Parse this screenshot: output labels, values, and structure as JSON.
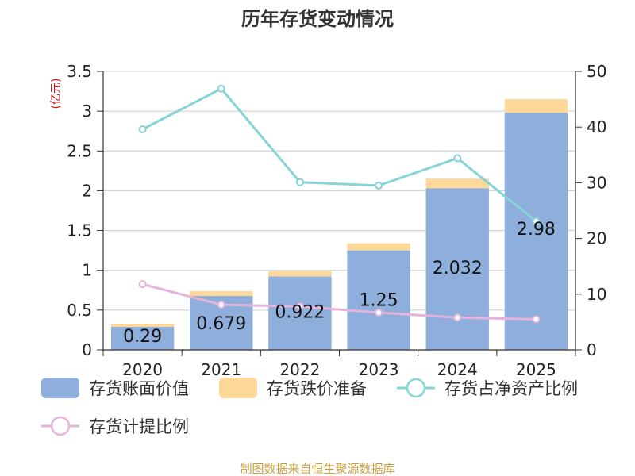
{
  "chart_data": {
    "type": "bar",
    "title": "历年存货变动情况",
    "categories": [
      "2020",
      "2021",
      "2022",
      "2023",
      "2024",
      "2025"
    ],
    "y_left_unit": "(亿元)",
    "y_left_ticks": [
      "0",
      "0.5",
      "1",
      "1.5",
      "2",
      "2.5",
      "3",
      "3.5"
    ],
    "y_left_range": [
      0,
      3.5
    ],
    "y_right_ticks": [
      "0",
      "10",
      "20",
      "30",
      "40",
      "50"
    ],
    "y_right_range": [
      0,
      50
    ],
    "grid": true,
    "legend_position": "bottom",
    "series": [
      {
        "name": "存货账面价值",
        "kind": "bar",
        "axis": "left",
        "color": "#8eaedb",
        "values": [
          0.29,
          0.679,
          0.922,
          1.25,
          2.032,
          2.98
        ],
        "labels": [
          "0.29",
          "0.679",
          "0.922",
          "1.25",
          "2.032",
          "2.98"
        ]
      },
      {
        "name": "存货跌价准备",
        "kind": "bar-stacked",
        "axis": "left",
        "color": "#fdd898",
        "values": [
          0.04,
          0.06,
          0.07,
          0.09,
          0.12,
          0.17
        ]
      },
      {
        "name": "存货占净资产比例",
        "kind": "line",
        "axis": "right",
        "color": "#86d4d6",
        "values": [
          39.6,
          46.9,
          30.1,
          29.5,
          34.4,
          23.1
        ]
      },
      {
        "name": "存货计提比例",
        "kind": "line",
        "axis": "right",
        "color": "#e6b3dc",
        "values": [
          11.8,
          8.1,
          7.8,
          6.7,
          5.8,
          5.5
        ]
      }
    ]
  },
  "source_text": "制图数据来自恒生聚源数据库"
}
